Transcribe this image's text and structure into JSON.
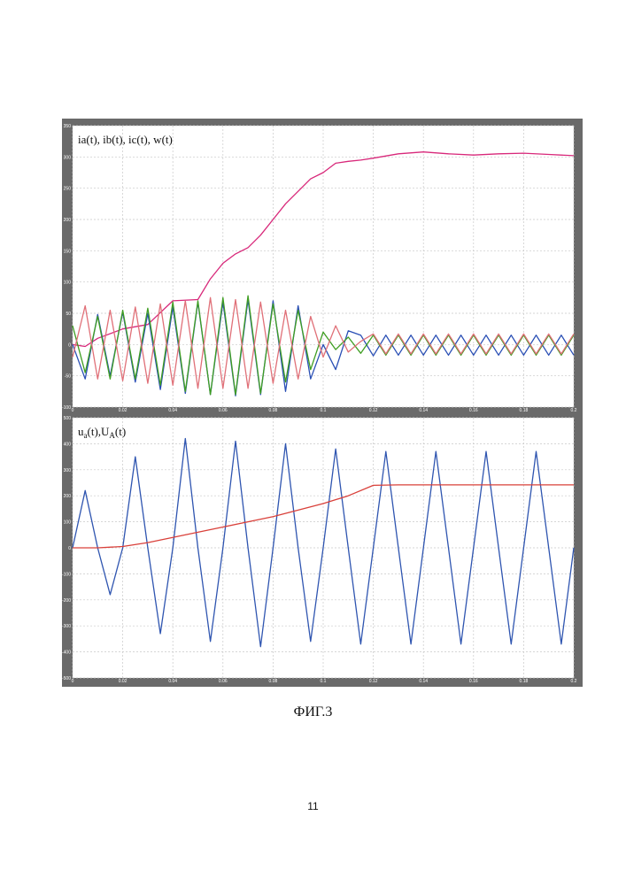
{
  "caption": "ФИГ.3",
  "page_number": "11",
  "chart_data": [
    {
      "type": "line",
      "title": "ia(t), ib(t), ic(t), w(t)",
      "xlim": [
        0,
        0.2
      ],
      "ylim": [
        -100,
        350
      ],
      "x_ticks": [
        "0",
        "0.02",
        "0.04",
        "0.06",
        "0.08",
        "0.1",
        "0.12",
        "0.14",
        "0.16",
        "0.18",
        "0.2"
      ],
      "y_ticks": [
        "-100",
        "-50",
        "0",
        "50",
        "100",
        "150",
        "200",
        "250",
        "300",
        "350"
      ],
      "grid": true,
      "series": [
        {
          "color": "#d8287a",
          "x": [
            0,
            0.005,
            0.01,
            0.02,
            0.03,
            0.04,
            0.05,
            0.055,
            0.06,
            0.065,
            0.07,
            0.075,
            0.08,
            0.085,
            0.09,
            0.095,
            0.1,
            0.105,
            0.11,
            0.115,
            0.12,
            0.13,
            0.14,
            0.15,
            0.16,
            0.17,
            0.18,
            0.19,
            0.2
          ],
          "y": [
            0,
            -3,
            10,
            25,
            32,
            70,
            72,
            105,
            130,
            145,
            155,
            175,
            200,
            225,
            245,
            265,
            275,
            290,
            293,
            295,
            298,
            305,
            308,
            305,
            303,
            305,
            306,
            304,
            302
          ]
        },
        {
          "color": "#2a4fb5",
          "x": [
            0,
            0.005,
            0.01,
            0.015,
            0.02,
            0.025,
            0.03,
            0.035,
            0.04,
            0.045,
            0.05,
            0.055,
            0.06,
            0.065,
            0.07,
            0.075,
            0.08,
            0.085,
            0.09,
            0.095,
            0.1,
            0.105,
            0.11,
            0.115,
            0.12,
            0.125,
            0.13,
            0.135,
            0.14,
            0.145,
            0.15,
            0.155,
            0.16,
            0.165,
            0.17,
            0.175,
            0.18,
            0.185,
            0.19,
            0.195,
            0.2
          ],
          "y": [
            0,
            -55,
            48,
            -50,
            52,
            -60,
            50,
            -72,
            60,
            -78,
            68,
            -80,
            68,
            -82,
            72,
            -80,
            70,
            -75,
            62,
            -55,
            0,
            -40,
            22,
            15,
            -18,
            15,
            -17,
            15,
            -17,
            15,
            -17,
            15,
            -17,
            15,
            -17,
            15,
            -17,
            15,
            -17,
            15,
            -17
          ]
        },
        {
          "color": "#3f9e22",
          "x": [
            0,
            0.005,
            0.01,
            0.015,
            0.02,
            0.025,
            0.03,
            0.035,
            0.04,
            0.045,
            0.05,
            0.055,
            0.06,
            0.065,
            0.07,
            0.075,
            0.08,
            0.085,
            0.09,
            0.095,
            0.1,
            0.105,
            0.11,
            0.115,
            0.12,
            0.125,
            0.13,
            0.135,
            0.14,
            0.145,
            0.15,
            0.155,
            0.16,
            0.165,
            0.17,
            0.175,
            0.18,
            0.185,
            0.19,
            0.195,
            0.2
          ],
          "y": [
            30,
            -45,
            45,
            -55,
            55,
            -55,
            58,
            -65,
            68,
            -75,
            70,
            -80,
            75,
            -80,
            78,
            -78,
            65,
            -60,
            55,
            -40,
            20,
            -8,
            12,
            -14,
            15,
            -17,
            15,
            -17,
            15,
            -17,
            15,
            -17,
            15,
            -17,
            15,
            -17,
            15,
            -17,
            15,
            -17,
            15
          ]
        },
        {
          "color": "#e07078",
          "x": [
            0,
            0.005,
            0.01,
            0.015,
            0.02,
            0.025,
            0.03,
            0.035,
            0.04,
            0.045,
            0.05,
            0.055,
            0.06,
            0.065,
            0.07,
            0.075,
            0.08,
            0.085,
            0.09,
            0.095,
            0.1,
            0.105,
            0.11,
            0.115,
            0.12,
            0.125,
            0.13,
            0.135,
            0.14,
            0.145,
            0.15,
            0.155,
            0.16,
            0.165,
            0.17,
            0.175,
            0.18,
            0.185,
            0.19,
            0.195,
            0.2
          ],
          "y": [
            -20,
            62,
            -55,
            55,
            -58,
            60,
            -62,
            65,
            -65,
            70,
            -70,
            75,
            -70,
            72,
            -70,
            68,
            -62,
            55,
            -55,
            45,
            -20,
            30,
            -12,
            5,
            17,
            -15,
            17,
            -15,
            17,
            -15,
            17,
            -15,
            17,
            -15,
            17,
            -15,
            17,
            -15,
            17,
            -15,
            17
          ]
        }
      ]
    },
    {
      "type": "line",
      "title": "ua(t),UA(t)",
      "xlim": [
        0,
        0.2
      ],
      "ylim": [
        -500,
        500
      ],
      "x_ticks": [
        "0",
        "0.02",
        "0.04",
        "0.06",
        "0.08",
        "0.1",
        "0.12",
        "0.14",
        "0.16",
        "0.18",
        "0.2"
      ],
      "y_ticks": [
        "-500",
        "-400",
        "-300",
        "-200",
        "-100",
        "0",
        "100",
        "200",
        "300",
        "400",
        "500"
      ],
      "grid": true,
      "series": [
        {
          "color": "#2f55b0",
          "x": [
            0,
            0.005,
            0.01,
            0.015,
            0.02,
            0.025,
            0.03,
            0.035,
            0.04,
            0.045,
            0.05,
            0.055,
            0.06,
            0.065,
            0.07,
            0.075,
            0.08,
            0.085,
            0.09,
            0.095,
            0.1,
            0.105,
            0.11,
            0.115,
            0.12,
            0.125,
            0.13,
            0.135,
            0.14,
            0.145,
            0.15,
            0.155,
            0.16,
            0.165,
            0.17,
            0.175,
            0.18,
            0.185,
            0.19,
            0.195,
            0.2
          ],
          "y": [
            0,
            220,
            0,
            -180,
            0,
            350,
            0,
            -330,
            0,
            420,
            0,
            -360,
            0,
            410,
            0,
            -380,
            0,
            400,
            0,
            -360,
            0,
            380,
            0,
            -370,
            0,
            370,
            0,
            -370,
            0,
            370,
            0,
            -370,
            0,
            370,
            0,
            -370,
            0,
            370,
            0,
            -370,
            0
          ]
        },
        {
          "color": "#d9403a",
          "x": [
            0,
            0.01,
            0.02,
            0.03,
            0.04,
            0.05,
            0.06,
            0.07,
            0.08,
            0.09,
            0.1,
            0.11,
            0.12,
            0.13,
            0.14,
            0.15,
            0.16,
            0.17,
            0.18,
            0.19,
            0.2
          ],
          "y": [
            0,
            0,
            5,
            20,
            40,
            60,
            80,
            100,
            120,
            145,
            170,
            200,
            240,
            242,
            242,
            242,
            242,
            242,
            242,
            242,
            242
          ]
        }
      ]
    }
  ]
}
